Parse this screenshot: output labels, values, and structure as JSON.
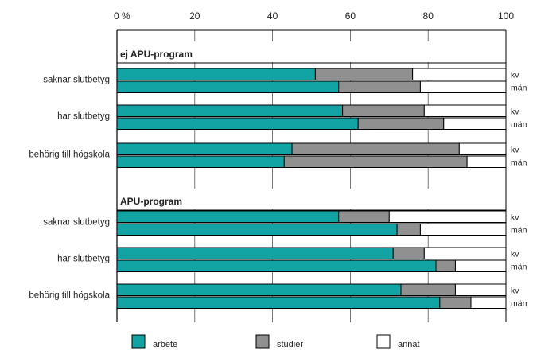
{
  "chart_data": {
    "type": "bar",
    "orientation": "horizontal",
    "stacked": true,
    "xlim": [
      0,
      100
    ],
    "x_ticks": [
      "0",
      "20",
      "40",
      "60",
      "80",
      "100"
    ],
    "x_unit": "%",
    "grid": true,
    "legend_position": "bottom",
    "series": [
      {
        "name": "arbete",
        "color": "#12a4a4"
      },
      {
        "name": "studier",
        "color": "#909090"
      },
      {
        "name": "annat",
        "color": "#ffffff"
      }
    ],
    "groups": [
      {
        "title": "ej APU-program",
        "categories": [
          {
            "label": "saknar slutbetyg",
            "rows": [
              {
                "sex": "kv",
                "values": [
                  51,
                  25,
                  24
                ]
              },
              {
                "sex": "män",
                "values": [
                  57,
                  21,
                  22
                ]
              }
            ]
          },
          {
            "label": "har slutbetyg",
            "rows": [
              {
                "sex": "kv",
                "values": [
                  58,
                  21,
                  21
                ]
              },
              {
                "sex": "män",
                "values": [
                  62,
                  22,
                  16
                ]
              }
            ]
          },
          {
            "label": "behörig till högskola",
            "rows": [
              {
                "sex": "kv",
                "values": [
                  45,
                  43,
                  12
                ]
              },
              {
                "sex": "män",
                "values": [
                  43,
                  47,
                  10
                ]
              }
            ]
          }
        ]
      },
      {
        "title": "APU-program",
        "categories": [
          {
            "label": "saknar slutbetyg",
            "rows": [
              {
                "sex": "kv",
                "values": [
                  57,
                  13,
                  30
                ]
              },
              {
                "sex": "män",
                "values": [
                  72,
                  6,
                  22
                ]
              }
            ]
          },
          {
            "label": "har slutbetyg",
            "rows": [
              {
                "sex": "kv",
                "values": [
                  71,
                  8,
                  21
                ]
              },
              {
                "sex": "män",
                "values": [
                  82,
                  5,
                  13
                ]
              }
            ]
          },
          {
            "label": "behörig till högskola",
            "rows": [
              {
                "sex": "kv",
                "values": [
                  73,
                  14,
                  13
                ]
              },
              {
                "sex": "män",
                "values": [
                  83,
                  8,
                  9
                ]
              }
            ]
          }
        ]
      }
    ]
  }
}
